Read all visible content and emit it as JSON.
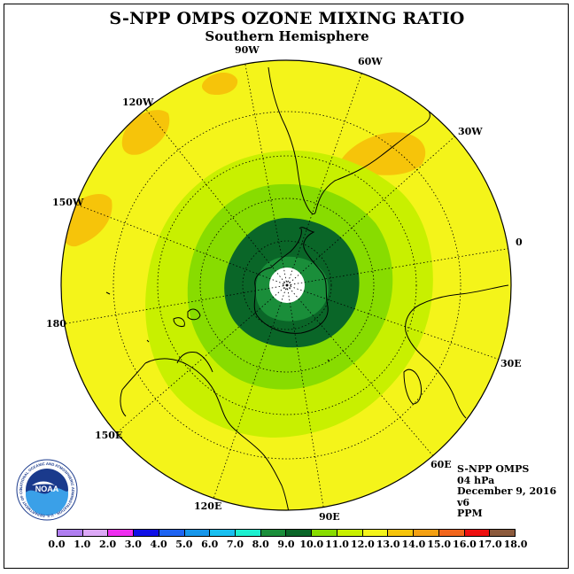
{
  "title": "S-NPP OMPS OZONE MIXING RATIO",
  "subtitle": "Southern Hemisphere",
  "longitude_labels": [
    {
      "text": "90W"
    },
    {
      "text": "60W"
    },
    {
      "text": "30W"
    },
    {
      "text": "0"
    },
    {
      "text": "30E"
    },
    {
      "text": "60E"
    },
    {
      "text": "90E"
    },
    {
      "text": "120E"
    },
    {
      "text": "150E"
    },
    {
      "text": "180"
    },
    {
      "text": "150W"
    },
    {
      "text": "120W"
    }
  ],
  "info": {
    "instrument": "S-NPP OMPS",
    "level": "04 hPa",
    "date": "December 9, 2016",
    "version": "v6",
    "units": "PPM"
  },
  "logo": {
    "text": "NOAA",
    "ring_text": "NATIONAL OCEANIC AND ATMOSPHERIC ADMINISTRATION · U.S. DEPARTMENT OF COMMERCE"
  },
  "colorbar": {
    "ticks": [
      "0.0",
      "1.0",
      "2.0",
      "3.0",
      "4.0",
      "5.0",
      "6.0",
      "7.0",
      "8.0",
      "9.0",
      "10.0",
      "11.0",
      "12.0",
      "13.0",
      "14.0",
      "15.0",
      "16.0",
      "17.0",
      "18.0"
    ],
    "colors": [
      "#b07ef0",
      "#dca8f6",
      "#ee2ef0",
      "#1010e6",
      "#1e64f2",
      "#1696ea",
      "#18bff0",
      "#1cf0d0",
      "#1a8e3a",
      "#0a6628",
      "#88dc00",
      "#c8f000",
      "#f4f41a",
      "#f6c40a",
      "#f4a012",
      "#f2661c",
      "#ee1010",
      "#8c5a3c"
    ]
  },
  "map_fill": {
    "background_level": "#f4f41a",
    "rings": [
      "#c8f000",
      "#88dc00",
      "#0a6628",
      "#1a8e3a"
    ]
  }
}
